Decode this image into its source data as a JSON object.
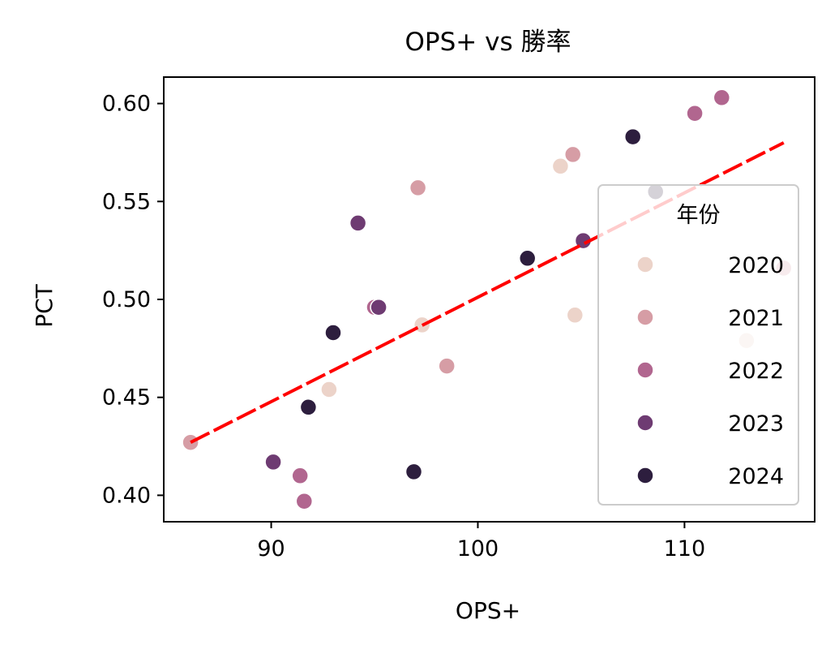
{
  "chart_data": {
    "type": "scatter",
    "title": "OPS+ vs 勝率",
    "xlabel": "OPS+",
    "ylabel": "PCT",
    "xlim": [
      84.8,
      116.3
    ],
    "ylim": [
      0.3865,
      0.6135
    ],
    "xticks": [
      "90",
      "100",
      "110"
    ],
    "xtick_values": [
      90,
      100,
      110
    ],
    "yticks": [
      "0.40",
      "0.45",
      "0.50",
      "0.55",
      "0.60"
    ],
    "ytick_values": [
      0.4,
      0.45,
      0.5,
      0.55,
      0.6
    ],
    "grid": false,
    "legend": {
      "title": "年份",
      "placement": "right"
    },
    "series": [
      {
        "name": "2020",
        "color": "#ecd3c9",
        "points": [
          [
            92.8,
            0.454
          ],
          [
            97.3,
            0.487
          ],
          [
            104.0,
            0.568
          ],
          [
            104.7,
            0.492
          ],
          [
            113.0,
            0.479
          ]
        ]
      },
      {
        "name": "2021",
        "color": "#d69da5",
        "points": [
          [
            86.1,
            0.427
          ],
          [
            97.1,
            0.557
          ],
          [
            98.5,
            0.466
          ],
          [
            104.6,
            0.574
          ],
          [
            114.8,
            0.516
          ]
        ]
      },
      {
        "name": "2022",
        "color": "#b1668f",
        "points": [
          [
            91.4,
            0.41
          ],
          [
            91.6,
            0.397
          ],
          [
            95.0,
            0.496
          ],
          [
            110.5,
            0.595
          ],
          [
            111.8,
            0.603
          ]
        ]
      },
      {
        "name": "2023",
        "color": "#6e3b72",
        "points": [
          [
            90.1,
            0.417
          ],
          [
            94.2,
            0.539
          ],
          [
            95.2,
            0.496
          ],
          [
            105.1,
            0.53
          ]
        ]
      },
      {
        "name": "2024",
        "color": "#2d1e3e",
        "points": [
          [
            91.8,
            0.445
          ],
          [
            93.0,
            0.483
          ],
          [
            96.9,
            0.412
          ],
          [
            102.4,
            0.521
          ],
          [
            107.5,
            0.583
          ],
          [
            108.6,
            0.555
          ]
        ]
      }
    ],
    "trendline": {
      "color": "#ff0000",
      "style": "dashed",
      "x": [
        86.1,
        114.8
      ],
      "y": [
        0.427,
        0.58
      ]
    }
  }
}
